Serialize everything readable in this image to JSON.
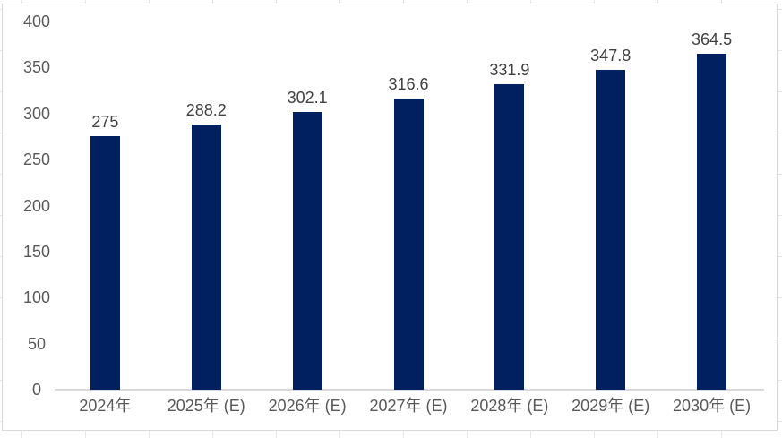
{
  "chart_data": {
    "type": "bar",
    "title": "",
    "xlabel": "",
    "ylabel": "",
    "categories": [
      "2024年",
      "2025年 (E)",
      "2026年 (E)",
      "2027年 (E)",
      "2028年 (E)",
      "2029年 (E)",
      "2030年 (E)"
    ],
    "values": [
      275,
      288.2,
      302.1,
      316.6,
      331.9,
      347.8,
      364.5
    ],
    "data_labels": [
      "275",
      "288.2",
      "302.1",
      "316.6",
      "331.9",
      "347.8",
      "364.5"
    ],
    "y_ticks": [
      "0",
      "50",
      "100",
      "150",
      "200",
      "250",
      "300",
      "350",
      "400"
    ],
    "ylim": [
      0,
      400
    ],
    "gridlines": false,
    "legend": "none",
    "colors": {
      "bar_fill": "#002060",
      "axis_text": "#595959",
      "data_label_text": "#404040",
      "axis_line": "#d9d9d9",
      "chart_border": "#d9d9d9",
      "background": "#ffffff"
    }
  }
}
